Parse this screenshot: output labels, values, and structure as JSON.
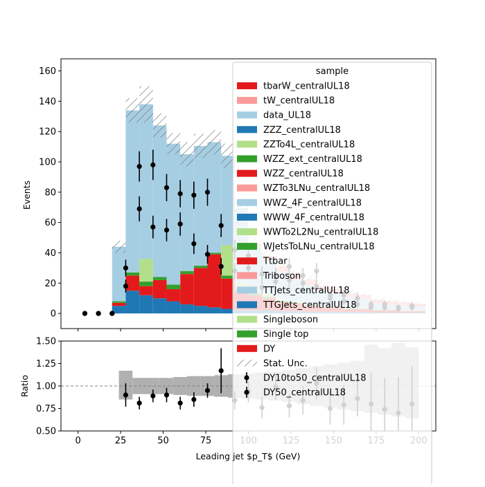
{
  "chart_data": [
    {
      "type": "bar",
      "stacked": true,
      "ylabel": "Events",
      "xlim": [
        -10,
        210
      ],
      "ylim": [
        -10,
        168
      ],
      "yticks": [
        0,
        20,
        40,
        60,
        80,
        100,
        120,
        140,
        160
      ],
      "bin_edges": [
        20,
        28,
        36,
        44,
        52,
        60,
        68,
        76,
        84,
        92,
        100,
        108,
        116,
        124,
        132,
        140,
        148,
        156,
        164,
        172,
        180,
        188,
        196,
        204
      ],
      "series": [
        {
          "name": "TTGJets_centralUL18",
          "color": "#1f78b4",
          "values": [
            5,
            15,
            12,
            10,
            8,
            6,
            5,
            4,
            3,
            2,
            2,
            2,
            1.5,
            1.5,
            1,
            1,
            1,
            0.8,
            0.8,
            0.5,
            0.5,
            0.5,
            0.5
          ]
        },
        {
          "name": "Ttbar",
          "color": "#e31a1c",
          "values": [
            2,
            10,
            6,
            12,
            8,
            20,
            25,
            35,
            20,
            12,
            10,
            8,
            6,
            5,
            4,
            3,
            3,
            2,
            2,
            1.5,
            1.5,
            1,
            1
          ]
        },
        {
          "name": "WZZ_ext_centralUL18",
          "color": "#33a02c",
          "values": [
            1,
            2,
            3,
            2,
            3,
            2,
            1.5,
            1,
            2,
            1.5,
            1,
            1,
            0.8,
            0.5,
            0.5,
            0.5,
            0.5,
            0.3,
            0.3,
            0.3,
            0.3,
            0.2,
            0.2
          ]
        },
        {
          "name": "WWTo2L2Nu_centralUL18",
          "color": "#b2df8a",
          "values": [
            0,
            0,
            15,
            0,
            0,
            0,
            0,
            0,
            20,
            5,
            3,
            2,
            1,
            1,
            1,
            0.5,
            0.5,
            0.5,
            0.3,
            0.3,
            0.3,
            0.2,
            0.2
          ]
        },
        {
          "name": "WWZ_4F_centralUL18",
          "color": "#a6cee3",
          "values": [
            36,
            107,
            102,
            100,
            93,
            77,
            79,
            73,
            59,
            49,
            28,
            22,
            18,
            14,
            12,
            10,
            8,
            7,
            6,
            4,
            3,
            3,
            2.5
          ]
        },
        {
          "name": "WZTo3LNu_centralUL18",
          "color": "#fb9a99",
          "values": [
            0,
            0,
            0,
            0,
            0,
            0,
            0,
            0,
            0,
            0,
            2,
            3,
            4,
            4,
            4,
            3,
            3,
            3,
            3,
            2.5,
            2.5,
            2.5,
            2
          ]
        }
      ],
      "stat_unc": [
        4,
        8,
        12,
        8,
        7,
        8,
        8,
        8,
        8,
        5,
        4,
        4,
        3,
        3,
        3,
        3,
        2,
        2,
        2,
        2,
        1.5,
        1.5,
        1.5
      ],
      "data_points": {
        "x": [
          4,
          12,
          20,
          28,
          36,
          44,
          52,
          60,
          68,
          76,
          84,
          92,
          100,
          108,
          116,
          124,
          132,
          140,
          148,
          156,
          164,
          172,
          180,
          188,
          196
        ],
        "y": [
          0,
          0,
          0,
          30,
          97,
          98,
          83,
          79,
          78,
          80,
          58,
          42,
          38,
          26,
          25,
          31,
          25,
          28,
          12,
          12,
          10,
          6,
          6,
          4,
          5
        ],
        "yerr": [
          0,
          0,
          0,
          5.5,
          10,
          10,
          9,
          9,
          9,
          9,
          7.6,
          6.5,
          6.2,
          5.1,
          5,
          5.6,
          5,
          5.3,
          3.5,
          3.5,
          3.2,
          2.4,
          2.4,
          2,
          2.2
        ]
      },
      "data_points_2": {
        "x": [
          4,
          12,
          20,
          28,
          36,
          44,
          52,
          60,
          68,
          76,
          84,
          92,
          100,
          108,
          116,
          124,
          132,
          140,
          148,
          156,
          164,
          172,
          180,
          188,
          196
        ],
        "y": [
          0,
          0,
          0,
          18,
          69,
          57,
          55,
          59,
          46,
          39,
          31,
          28,
          30,
          17,
          21,
          22,
          20,
          18,
          10,
          8,
          6,
          4,
          4,
          3,
          4
        ],
        "yerr": [
          0,
          0,
          0,
          4.2,
          8.3,
          7.5,
          7.4,
          7.7,
          6.8,
          6.2,
          5.6,
          5.3,
          5.5,
          4.1,
          4.6,
          4.7,
          4.5,
          4.2,
          3.2,
          2.8,
          2.4,
          2,
          2,
          1.7,
          2
        ]
      },
      "legend": {
        "title": "sample",
        "placement": "top-right",
        "entries": [
          {
            "label": "tbarW_centralUL18",
            "color": "#e31a1c",
            "kind": "patch"
          },
          {
            "label": "tW_centralUL18",
            "color": "#fb9a99",
            "kind": "patch"
          },
          {
            "label": "data_UL18",
            "color": "#a6cee3",
            "kind": "patch"
          },
          {
            "label": "ZZZ_centralUL18",
            "color": "#1f78b4",
            "kind": "patch"
          },
          {
            "label": "ZZTo4L_centralUL18",
            "color": "#b2df8a",
            "kind": "patch"
          },
          {
            "label": "WZZ_ext_centralUL18",
            "color": "#33a02c",
            "kind": "patch"
          },
          {
            "label": "WZZ_centralUL18",
            "color": "#e31a1c",
            "kind": "patch"
          },
          {
            "label": "WZTo3LNu_centralUL18",
            "color": "#fb9a99",
            "kind": "patch"
          },
          {
            "label": "WWZ_4F_centralUL18",
            "color": "#a6cee3",
            "kind": "patch"
          },
          {
            "label": "WWW_4F_centralUL18",
            "color": "#1f78b4",
            "kind": "patch"
          },
          {
            "label": "WWTo2L2Nu_centralUL18",
            "color": "#b2df8a",
            "kind": "patch"
          },
          {
            "label": "WJetsToLNu_centralUL18",
            "color": "#33a02c",
            "kind": "patch"
          },
          {
            "label": "Ttbar",
            "color": "#e31a1c",
            "kind": "patch"
          },
          {
            "label": "Triboson",
            "color": "#fb9a99",
            "kind": "patch"
          },
          {
            "label": "TTJets_centralUL18",
            "color": "#a6cee3",
            "kind": "patch"
          },
          {
            "label": "TTGJets_centralUL18",
            "color": "#1f78b4",
            "kind": "patch"
          },
          {
            "label": "Singleboson",
            "color": "#b2df8a",
            "kind": "patch"
          },
          {
            "label": "Single top",
            "color": "#33a02c",
            "kind": "patch"
          },
          {
            "label": "DY",
            "color": "#e31a1c",
            "kind": "patch"
          },
          {
            "label": "Stat. Unc.",
            "color": "#888888",
            "kind": "hatch"
          },
          {
            "label": "DY10to50_centralUL18",
            "color": "#000000",
            "kind": "marker"
          },
          {
            "label": "DY50_centralUL18",
            "color": "#000000",
            "kind": "marker"
          }
        ]
      }
    },
    {
      "type": "scatter",
      "ylabel": "Ratio",
      "xlabel": "Leading jet  $p_T$ (GeV)",
      "xlim": [
        -10,
        210
      ],
      "ylim": [
        0.5,
        1.5
      ],
      "xticks": [
        0,
        25,
        50,
        75,
        100,
        125,
        150,
        175,
        200
      ],
      "yticks": [
        "0.50",
        "0.75",
        "1.00",
        "1.25",
        "1.50"
      ],
      "reference_line": 1.0,
      "unc_band": {
        "bin_edges": [
          24,
          32,
          40,
          48,
          56,
          64,
          72,
          80,
          88,
          96,
          104,
          112,
          120,
          128,
          136,
          144,
          152,
          160,
          168,
          176,
          184,
          192,
          200
        ],
        "low": [
          0.85,
          0.91,
          0.91,
          0.91,
          0.9,
          0.89,
          0.89,
          0.88,
          0.87,
          0.86,
          0.85,
          0.84,
          0.82,
          0.8,
          0.78,
          0.76,
          0.74,
          0.72,
          0.7,
          0.68,
          0.66,
          0.64
        ],
        "high": [
          1.17,
          1.09,
          1.09,
          1.09,
          1.1,
          1.11,
          1.11,
          1.12,
          1.13,
          1.14,
          1.15,
          1.16,
          1.18,
          1.2,
          1.22,
          1.24,
          1.26,
          1.28,
          1.46,
          1.42,
          1.48,
          1.43
        ]
      },
      "points": {
        "x": [
          28,
          36,
          44,
          52,
          60,
          68,
          76,
          84,
          92,
          100,
          108,
          116,
          124,
          132,
          140,
          148,
          156,
          164,
          172,
          180,
          188,
          196
        ],
        "y": [
          0.9,
          0.81,
          0.89,
          0.9,
          0.81,
          0.85,
          0.95,
          1.17,
          0.84,
          0.94,
          0.76,
          0.99,
          0.78,
          0.84,
          1.03,
          0.75,
          0.79,
          0.86,
          0.8,
          0.74,
          0.7,
          0.8
        ],
        "yerr": [
          0.13,
          0.07,
          0.07,
          0.08,
          0.07,
          0.08,
          0.08,
          0.25,
          0.1,
          0.12,
          0.12,
          0.15,
          0.13,
          0.16,
          0.18,
          0.18,
          0.22,
          0.2,
          0.35,
          0.35,
          0.4,
          0.42
        ]
      }
    }
  ]
}
